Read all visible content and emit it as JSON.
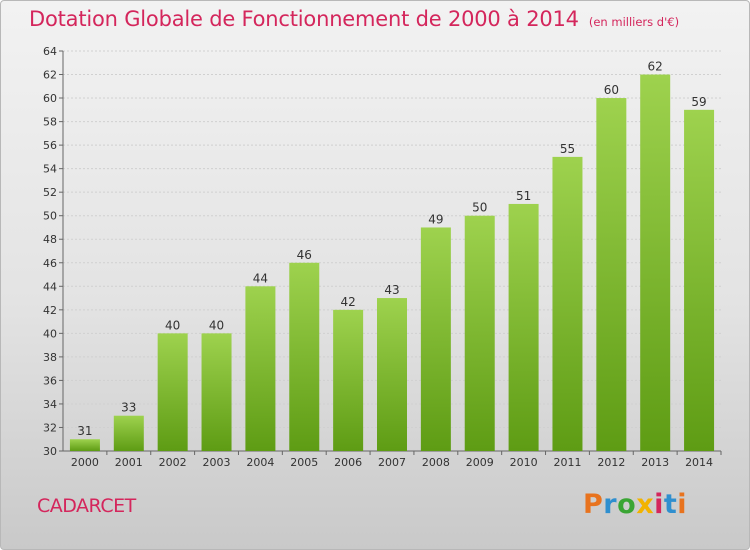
{
  "header": {
    "title": "Dotation Globale de Fonctionnement de 2000 à 2014",
    "subtitle": "(en milliers d'€)"
  },
  "footer": {
    "commune": "CADARCET",
    "brand": "Proxiti",
    "brand_colors": [
      "#e8731e",
      "#2f8fcf",
      "#3aa534",
      "#f2b300",
      "#d4265c",
      "#2f8fcf",
      "#e8731e"
    ]
  },
  "colors": {
    "title": "#d4265c",
    "bar_light": "#9ed24e",
    "bar_dark": "#5e9c14",
    "gridline": "#d0d0d0"
  },
  "chart_data": {
    "type": "bar",
    "title": "Dotation Globale de Fonctionnement de 2000 à 2014",
    "subtitle": "(en milliers d'€)",
    "xlabel": "",
    "ylabel": "",
    "categories": [
      "2000",
      "2001",
      "2002",
      "2003",
      "2004",
      "2005",
      "2006",
      "2007",
      "2008",
      "2009",
      "2010",
      "2011",
      "2012",
      "2013",
      "2014"
    ],
    "values": [
      31,
      33,
      40,
      40,
      44,
      46,
      42,
      43,
      49,
      50,
      51,
      55,
      60,
      62,
      59
    ],
    "ylim": [
      30,
      64
    ],
    "yticks": [
      30,
      32,
      34,
      36,
      38,
      40,
      42,
      44,
      46,
      48,
      50,
      52,
      54,
      56,
      58,
      60,
      62,
      64
    ],
    "grid": true,
    "legend": "none"
  }
}
